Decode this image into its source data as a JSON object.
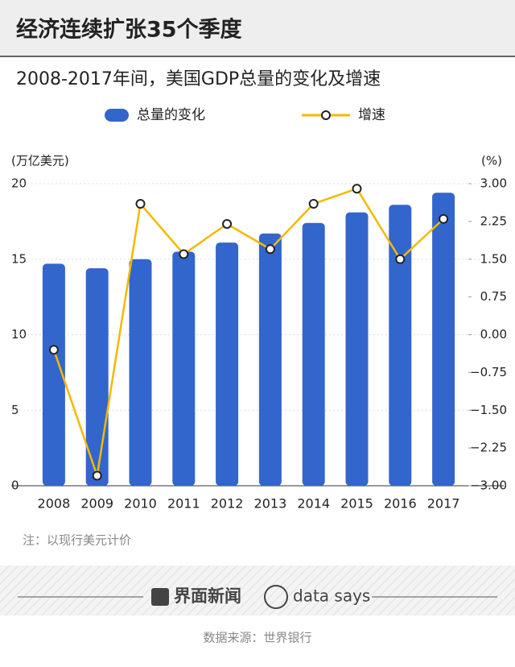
{
  "chart_data": {
    "type": "bar-line",
    "title": "经济连续扩张35个季度",
    "subtitle": "2008-2017年间，美国GDP总量的变化及增速",
    "y_label": "(万亿美元)",
    "y2_label": "(%)",
    "categories": [
      "2008",
      "2009",
      "2010",
      "2011",
      "2012",
      "2013",
      "2014",
      "2015",
      "2016",
      "2017"
    ],
    "series": [
      {
        "name": "总量的变化",
        "type": "bar",
        "color": "#3366cc",
        "values": [
          14.7,
          14.4,
          15.0,
          15.5,
          16.1,
          16.7,
          17.4,
          18.1,
          18.6,
          19.4
        ]
      },
      {
        "name": "增速",
        "type": "line",
        "color": "#f5b800",
        "axis": "y2",
        "values": [
          -0.3,
          -2.8,
          2.6,
          1.6,
          2.2,
          1.7,
          2.6,
          2.9,
          1.5,
          2.3
        ]
      }
    ],
    "ylim": [
      0,
      20
    ],
    "yticks": [
      0,
      5,
      10,
      15,
      20
    ],
    "y2lim": [
      -3,
      3
    ],
    "y2ticks": [
      {
        "value": 3,
        "label": "3.00"
      },
      {
        "value": 2.25,
        "label": "2.25"
      },
      {
        "value": 1.5,
        "label": "1.50"
      },
      {
        "value": 0.75,
        "label": "0.75"
      },
      {
        "value": 0,
        "label": "0.00"
      },
      {
        "value": -0.75,
        "label": "−0.75"
      },
      {
        "value": -1.5,
        "label": "−1.50"
      },
      {
        "value": -2.25,
        "label": "−2.25"
      },
      {
        "value": -3,
        "label": "−3.00"
      }
    ],
    "note": "注：以现行美元计价",
    "logos": [
      "界面新闻",
      "data says"
    ],
    "source": "数据来源：世界银行"
  }
}
